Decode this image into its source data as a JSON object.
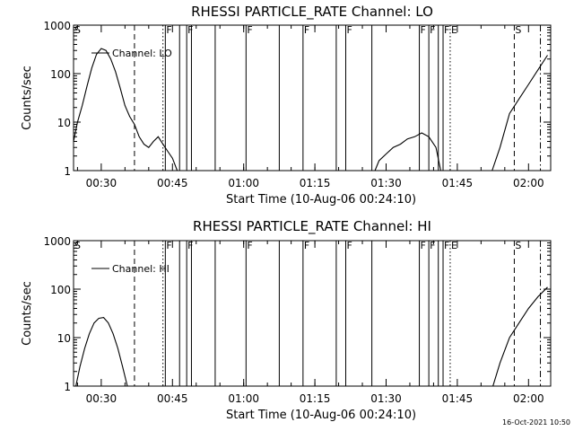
{
  "footer": {
    "timestamp": "16-Oct-2021 10:50"
  },
  "chart_data": [
    {
      "type": "line",
      "title": "RHESSI PARTICLE_RATE Channel: LO",
      "xlabel": "Start Time (10-Aug-06 00:24:10)",
      "ylabel": "Counts/sec",
      "yscale": "log",
      "ylim": [
        1,
        1000
      ],
      "xlim_minutes_after_start": [
        0,
        100.5
      ],
      "x_tick_labels": [
        "00:30",
        "00:45",
        "01:00",
        "01:15",
        "01:30",
        "01:45",
        "02:00"
      ],
      "y_tick_labels": [
        "1",
        "10",
        "100",
        "1000"
      ],
      "legend": {
        "label": "Channel: LO",
        "position": "top-left"
      },
      "series": [
        {
          "name": "Channel: LO",
          "segments": [
            {
              "x": [
                "00:24:10",
                "00:25:00",
                "00:26:00",
                "00:27:00",
                "00:28:00",
                "00:29:00",
                "00:30:00",
                "00:31:00",
                "00:32:00",
                "00:33:00",
                "00:34:00",
                "00:35:00",
                "00:36:00",
                "00:37:00",
                "00:38:00",
                "00:39:00",
                "00:40:00",
                "00:41:00",
                "00:42:00",
                "00:43:00",
                "00:44:00",
                "00:45:00",
                "00:46:00"
              ],
              "y": [
                4,
                10,
                22,
                55,
                130,
                250,
                330,
                300,
                200,
                110,
                50,
                22,
                13,
                9,
                5,
                3.5,
                3,
                4,
                5,
                3.5,
                2.5,
                1.8,
                1
              ]
            },
            {
              "x": [
                "01:27:40",
                "01:28:30",
                "01:30:00",
                "01:31:30",
                "01:33:00",
                "01:34:30",
                "01:36:00",
                "01:37:30",
                "01:39:00",
                "01:40:30",
                "01:41:30"
              ],
              "y": [
                1,
                1.6,
                2.2,
                3,
                3.5,
                4.5,
                5,
                6,
                5,
                3,
                1
              ]
            },
            {
              "x": [
                "01:52:20",
                "01:54:00",
                "01:56:00",
                "01:58:00",
                "02:00:00",
                "02:02:00",
                "02:04:00"
              ],
              "y": [
                1,
                3,
                15,
                30,
                60,
                120,
                240
              ]
            }
          ]
        }
      ],
      "event_markers": [
        {
          "time": "00:24:10",
          "flag": "S",
          "style": "dash-dot"
        },
        {
          "time": "00:37:00",
          "style": "dashed"
        },
        {
          "time": "00:43:00",
          "style": "dotted"
        },
        {
          "time": "00:43:30",
          "flag": "F",
          "style": "solid"
        },
        {
          "time": "00:46:30",
          "style": "solid"
        },
        {
          "time": "00:48:00",
          "flag": "F",
          "style": "solid"
        },
        {
          "time": "00:49:00",
          "style": "solid"
        },
        {
          "time": "00:54:00",
          "style": "solid"
        },
        {
          "time": "01:00:30",
          "flag": "F",
          "style": "solid"
        },
        {
          "time": "01:07:30",
          "style": "solid"
        },
        {
          "time": "01:12:30",
          "flag": "F",
          "style": "solid"
        },
        {
          "time": "01:19:30",
          "style": "solid"
        },
        {
          "time": "01:21:30",
          "flag": "F",
          "style": "solid"
        },
        {
          "time": "01:27:00",
          "style": "solid"
        },
        {
          "time": "01:37:00",
          "flag": "F",
          "style": "solid"
        },
        {
          "time": "01:39:00",
          "flag": "F",
          "style": "solid"
        },
        {
          "time": "01:41:00",
          "style": "solid"
        },
        {
          "time": "01:42:00",
          "flag": "F",
          "style": "solid"
        },
        {
          "time": "01:43:30",
          "flag": "E",
          "style": "dotted"
        },
        {
          "time": "01:57:00",
          "flag": "S",
          "style": "dashed"
        },
        {
          "time": "02:02:30",
          "style": "dash-dot"
        }
      ]
    },
    {
      "type": "line",
      "title": "RHESSI PARTICLE_RATE Channel: HI",
      "xlabel": "Start Time (10-Aug-06 00:24:10)",
      "ylabel": "Counts/sec",
      "yscale": "log",
      "ylim": [
        1,
        1000
      ],
      "xlim_minutes_after_start": [
        0,
        100.5
      ],
      "x_tick_labels": [
        "00:30",
        "00:45",
        "01:00",
        "01:15",
        "01:30",
        "01:45",
        "02:00"
      ],
      "y_tick_labels": [
        "1",
        "10",
        "100",
        "1000"
      ],
      "legend": {
        "label": "Channel: HI",
        "position": "top-left"
      },
      "series": [
        {
          "name": "Channel: HI",
          "segments": [
            {
              "x": [
                "00:24:40",
                "00:25:30",
                "00:26:30",
                "00:27:30",
                "00:28:30",
                "00:29:30",
                "00:30:30",
                "00:31:30",
                "00:32:30",
                "00:33:30",
                "00:34:30",
                "00:35:30"
              ],
              "y": [
                1,
                2.5,
                6,
                12,
                20,
                25,
                26,
                20,
                12,
                6,
                2.5,
                1
              ]
            },
            {
              "x": [
                "01:52:30",
                "01:54:00",
                "01:56:00",
                "01:58:00",
                "02:00:00",
                "02:02:00",
                "02:04:00"
              ],
              "y": [
                1,
                3,
                10,
                20,
                40,
                70,
                110
              ]
            }
          ]
        }
      ],
      "event_markers": [
        {
          "time": "00:24:10",
          "flag": "S",
          "style": "dash-dot"
        },
        {
          "time": "00:37:00",
          "style": "dashed"
        },
        {
          "time": "00:43:00",
          "style": "dotted"
        },
        {
          "time": "00:43:30",
          "flag": "F",
          "style": "solid"
        },
        {
          "time": "00:46:30",
          "style": "solid"
        },
        {
          "time": "00:48:00",
          "flag": "F",
          "style": "solid"
        },
        {
          "time": "00:49:00",
          "style": "solid"
        },
        {
          "time": "00:54:00",
          "style": "solid"
        },
        {
          "time": "01:00:30",
          "flag": "F",
          "style": "solid"
        },
        {
          "time": "01:07:30",
          "style": "solid"
        },
        {
          "time": "01:12:30",
          "flag": "F",
          "style": "solid"
        },
        {
          "time": "01:19:30",
          "style": "solid"
        },
        {
          "time": "01:21:30",
          "flag": "F",
          "style": "solid"
        },
        {
          "time": "01:27:00",
          "style": "solid"
        },
        {
          "time": "01:37:00",
          "flag": "F",
          "style": "solid"
        },
        {
          "time": "01:39:00",
          "flag": "F",
          "style": "solid"
        },
        {
          "time": "01:41:00",
          "style": "solid"
        },
        {
          "time": "01:42:00",
          "flag": "F",
          "style": "solid"
        },
        {
          "time": "01:43:30",
          "flag": "E",
          "style": "dotted"
        },
        {
          "time": "01:57:00",
          "flag": "S",
          "style": "dashed"
        },
        {
          "time": "02:02:30",
          "style": "dash-dot"
        }
      ]
    }
  ]
}
